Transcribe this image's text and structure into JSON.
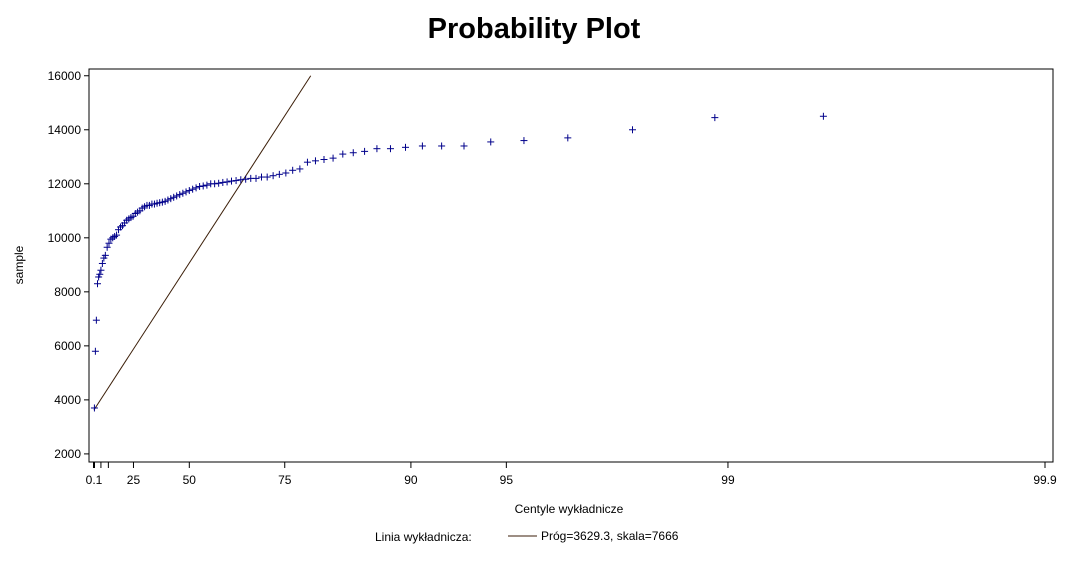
{
  "chart_data": {
    "type": "scatter",
    "title": "Probability Plot",
    "xlabel": "Centyle wykładnicze",
    "ylabel": "sample",
    "x_scale": "exponential-probability",
    "x_ticks": [
      {
        "p": 0.1,
        "label": "0.1"
      },
      {
        "p": 5,
        "label": ""
      },
      {
        "p": 10,
        "label": ""
      },
      {
        "p": 25,
        "label": "25"
      },
      {
        "p": 50,
        "label": "50"
      },
      {
        "p": 75,
        "label": "75"
      },
      {
        "p": 90,
        "label": "90"
      },
      {
        "p": 95,
        "label": "95"
      },
      {
        "p": 99,
        "label": "99"
      },
      {
        "p": 99.9,
        "label": "99.9"
      }
    ],
    "y_ticks": [
      2000,
      4000,
      6000,
      8000,
      10000,
      12000,
      14000,
      16000
    ],
    "ylim": [
      1700,
      16250
    ],
    "grid": false,
    "legend_position": "bottom",
    "colors": {
      "points": "#00008b",
      "line": "#3b1e08",
      "frame": "#000000"
    },
    "series": [
      {
        "marker": "plus",
        "points": [
          [
            0.4,
            3700
          ],
          [
            1.1,
            5800
          ],
          [
            1.8,
            6950
          ],
          [
            2.6,
            8300
          ],
          [
            3.4,
            8550
          ],
          [
            4.2,
            8650
          ],
          [
            5.0,
            8800
          ],
          [
            6.0,
            9050
          ],
          [
            7.0,
            9250
          ],
          [
            8.0,
            9350
          ],
          [
            9.2,
            9650
          ],
          [
            10.4,
            9800
          ],
          [
            11.6,
            9950
          ],
          [
            12.8,
            10000
          ],
          [
            14.0,
            10050
          ],
          [
            15.2,
            10100
          ],
          [
            16.4,
            10300
          ],
          [
            17.6,
            10400
          ],
          [
            18.8,
            10450
          ],
          [
            20.0,
            10550
          ],
          [
            21.2,
            10650
          ],
          [
            22.4,
            10700
          ],
          [
            23.6,
            10750
          ],
          [
            24.8,
            10800
          ],
          [
            26.0,
            10900
          ],
          [
            27.2,
            10950
          ],
          [
            28.4,
            11000
          ],
          [
            29.6,
            11100
          ],
          [
            30.8,
            11150
          ],
          [
            32.0,
            11200
          ],
          [
            33.2,
            11200
          ],
          [
            34.4,
            11250
          ],
          [
            35.6,
            11250
          ],
          [
            36.8,
            11280
          ],
          [
            38.0,
            11300
          ],
          [
            39.2,
            11320
          ],
          [
            40.4,
            11350
          ],
          [
            41.6,
            11400
          ],
          [
            42.8,
            11450
          ],
          [
            44.0,
            11500
          ],
          [
            45.2,
            11550
          ],
          [
            46.4,
            11600
          ],
          [
            47.6,
            11650
          ],
          [
            48.8,
            11700
          ],
          [
            50.0,
            11750
          ],
          [
            51.2,
            11800
          ],
          [
            52.4,
            11850
          ],
          [
            53.6,
            11900
          ],
          [
            54.8,
            11920
          ],
          [
            56.0,
            11950
          ],
          [
            57.2,
            12000
          ],
          [
            58.4,
            12000
          ],
          [
            59.6,
            12020
          ],
          [
            60.8,
            12050
          ],
          [
            62.0,
            12070
          ],
          [
            63.2,
            12100
          ],
          [
            64.4,
            12120
          ],
          [
            65.6,
            12150
          ],
          [
            66.8,
            12170
          ],
          [
            68.0,
            12200
          ],
          [
            69.2,
            12200
          ],
          [
            70.4,
            12250
          ],
          [
            71.6,
            12250
          ],
          [
            72.8,
            12300
          ],
          [
            74.0,
            12350
          ],
          [
            75.2,
            12400
          ],
          [
            76.4,
            12500
          ],
          [
            77.6,
            12550
          ],
          [
            78.8,
            12800
          ],
          [
            80.0,
            12850
          ],
          [
            81.2,
            12900
          ],
          [
            82.4,
            12950
          ],
          [
            83.6,
            13100
          ],
          [
            84.8,
            13150
          ],
          [
            86.0,
            13200
          ],
          [
            87.2,
            13300
          ],
          [
            88.4,
            13300
          ],
          [
            89.6,
            13350
          ],
          [
            90.8,
            13400
          ],
          [
            92.0,
            13400
          ],
          [
            93.2,
            13400
          ],
          [
            94.4,
            13550
          ],
          [
            95.6,
            13600
          ],
          [
            96.8,
            13700
          ],
          [
            98.0,
            14000
          ],
          [
            98.9,
            14450
          ],
          [
            99.5,
            14500
          ]
        ]
      }
    ],
    "reference_line": {
      "from": [
        0.1,
        3629.3
      ],
      "to": [
        79.3,
        16000
      ]
    },
    "legend": {
      "label": "Linia wykładnicza:",
      "entry": "Próg=3629.3, skala=7666"
    }
  }
}
